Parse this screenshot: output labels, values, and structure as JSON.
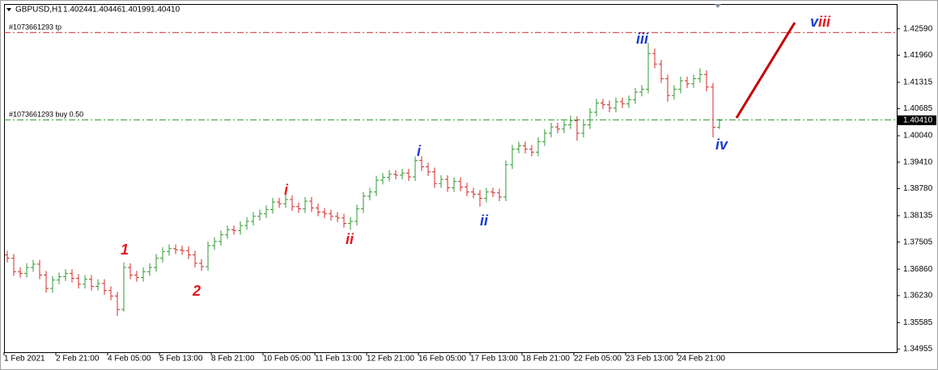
{
  "chart_data": {
    "type": "ohlc",
    "symbol": "GBPUSD,H1",
    "last_labels": {
      "open": "1.40244",
      "high": "1.40446",
      "low": "1.40199",
      "close": "1.40410"
    },
    "up_color": "#2f9a2f",
    "down_color": "#d42a2a",
    "ylim": [
      1.3488,
      1.4318
    ],
    "yticks": [
      {
        "value": 1.4259,
        "label": "1.42590"
      },
      {
        "value": 1.4196,
        "label": "1.41960"
      },
      {
        "value": 1.41315,
        "label": "1.41315"
      },
      {
        "value": 1.40685,
        "label": "1.40685"
      },
      {
        "value": 1.4004,
        "label": "1.40040"
      },
      {
        "value": 1.3941,
        "label": "1.39410"
      },
      {
        "value": 1.3878,
        "label": "1.38780"
      },
      {
        "value": 1.38135,
        "label": "1.38135"
      },
      {
        "value": 1.37505,
        "label": "1.37505"
      },
      {
        "value": 1.3686,
        "label": "1.36860"
      },
      {
        "value": 1.3623,
        "label": "1.36230"
      },
      {
        "value": 1.35585,
        "label": "1.35585"
      },
      {
        "value": 1.34955,
        "label": "1.34955"
      }
    ],
    "categories": [
      "1 Feb 2021",
      null,
      null,
      null,
      null,
      null,
      null,
      null,
      "2 Feb 21:00",
      null,
      null,
      null,
      null,
      null,
      null,
      null,
      "4 Feb 05:00",
      null,
      null,
      null,
      null,
      null,
      null,
      null,
      "5 Feb 13:00",
      null,
      null,
      null,
      null,
      null,
      null,
      null,
      "8 Feb 21:00",
      null,
      null,
      null,
      null,
      null,
      null,
      null,
      "10 Feb 05:00",
      null,
      null,
      null,
      null,
      null,
      null,
      null,
      "11 Feb 13:00",
      null,
      null,
      null,
      null,
      null,
      null,
      null,
      "12 Feb 21:00",
      null,
      null,
      null,
      null,
      null,
      null,
      null,
      "16 Feb 05:00",
      null,
      null,
      null,
      null,
      null,
      null,
      null,
      "17 Feb 13:00",
      null,
      null,
      null,
      null,
      null,
      null,
      null,
      "18 Feb 21:00",
      null,
      null,
      null,
      null,
      null,
      null,
      null,
      "22 Feb 05:00",
      null,
      null,
      null,
      null,
      null,
      null,
      null,
      "23 Feb 13:00",
      null,
      null,
      null,
      null,
      null,
      null,
      null,
      "24 Feb 21:00",
      null,
      null,
      null,
      null,
      null,
      null
    ],
    "open": [
      1.372,
      1.3712,
      1.368,
      1.3676,
      1.369,
      1.3698,
      1.3672,
      1.364,
      1.366,
      1.3668,
      1.3676,
      1.3664,
      1.365,
      1.3662,
      1.3645,
      1.3652,
      1.3635,
      1.3622,
      1.359,
      1.369,
      1.3672,
      1.3666,
      1.368,
      1.369,
      1.3712,
      1.3728,
      1.3735,
      1.3732,
      1.373,
      1.372,
      1.37,
      1.3692,
      1.3742,
      1.3752,
      1.3768,
      1.378,
      1.3778,
      1.379,
      1.38,
      1.3812,
      1.3818,
      1.3828,
      1.3846,
      1.3842,
      1.3852,
      1.3835,
      1.383,
      1.3848,
      1.3832,
      1.3822,
      1.3818,
      1.3812,
      1.3808,
      1.3795,
      1.38,
      1.383,
      1.386,
      1.387,
      1.3898,
      1.3905,
      1.3912,
      1.391,
      1.3915,
      1.3906,
      1.3945,
      1.393,
      1.3918,
      1.389,
      1.39,
      1.388,
      1.3895,
      1.3882,
      1.387,
      1.3865,
      1.3855,
      1.387,
      1.3868,
      1.3858,
      1.3935,
      1.3972,
      1.398,
      1.3972,
      1.3965,
      1.399,
      1.401,
      1.4025,
      1.402,
      1.403,
      1.404,
      1.401,
      1.403,
      1.406,
      1.4082,
      1.4078,
      1.407,
      1.4085,
      1.408,
      1.409,
      1.4108,
      1.4115,
      1.42,
      1.4175,
      1.414,
      1.41,
      1.4115,
      1.4135,
      1.4128,
      1.414,
      1.415,
      1.412,
      1.40244
    ],
    "high": [
      1.373,
      1.3722,
      1.369,
      1.37,
      1.3708,
      1.3708,
      1.3682,
      1.367,
      1.3678,
      1.3686,
      1.3686,
      1.3674,
      1.3672,
      1.3672,
      1.3662,
      1.3662,
      1.3645,
      1.3632,
      1.3702,
      1.37,
      1.3682,
      1.369,
      1.37,
      1.3722,
      1.3738,
      1.3745,
      1.3745,
      1.3742,
      1.374,
      1.373,
      1.371,
      1.3752,
      1.3762,
      1.3778,
      1.379,
      1.379,
      1.38,
      1.381,
      1.3822,
      1.3828,
      1.3838,
      1.3856,
      1.3856,
      1.3866,
      1.3862,
      1.3845,
      1.3858,
      1.3858,
      1.3842,
      1.3832,
      1.3828,
      1.3822,
      1.3818,
      1.381,
      1.384,
      1.387,
      1.388,
      1.3908,
      1.3915,
      1.3922,
      1.3922,
      1.3925,
      1.3925,
      1.3955,
      1.3955,
      1.394,
      1.3928,
      1.391,
      1.391,
      1.3905,
      1.3905,
      1.3892,
      1.388,
      1.3875,
      1.388,
      1.388,
      1.3878,
      1.3945,
      1.3982,
      1.399,
      1.399,
      1.3982,
      1.4,
      1.402,
      1.4035,
      1.4035,
      1.404,
      1.4052,
      1.405,
      1.404,
      1.407,
      1.4092,
      1.4092,
      1.4088,
      1.4095,
      1.4095,
      1.41,
      1.4118,
      1.4125,
      1.4225,
      1.4212,
      1.4185,
      1.415,
      1.4125,
      1.4145,
      1.4145,
      1.415,
      1.4165,
      1.416,
      1.413,
      1.40446
    ],
    "low": [
      1.3702,
      1.367,
      1.3666,
      1.3666,
      1.368,
      1.3662,
      1.363,
      1.363,
      1.365,
      1.3658,
      1.3654,
      1.364,
      1.364,
      1.3635,
      1.3635,
      1.3625,
      1.3612,
      1.3575,
      1.3585,
      1.3662,
      1.3656,
      1.3656,
      1.367,
      1.368,
      1.3702,
      1.3718,
      1.3722,
      1.372,
      1.371,
      1.369,
      1.3682,
      1.3682,
      1.3732,
      1.3742,
      1.3758,
      1.3768,
      1.3768,
      1.378,
      1.379,
      1.3802,
      1.3808,
      1.3818,
      1.3832,
      1.3832,
      1.3825,
      1.382,
      1.382,
      1.3822,
      1.3812,
      1.3808,
      1.3802,
      1.3798,
      1.3785,
      1.378,
      1.379,
      1.382,
      1.385,
      1.386,
      1.3888,
      1.3895,
      1.39,
      1.39,
      1.3896,
      1.3896,
      1.392,
      1.3908,
      1.388,
      1.388,
      1.387,
      1.387,
      1.3872,
      1.386,
      1.3855,
      1.3835,
      1.3845,
      1.3858,
      1.3848,
      1.3848,
      1.3925,
      1.3962,
      1.3962,
      1.3955,
      1.3955,
      1.398,
      1.4,
      1.401,
      1.401,
      1.402,
      1.3992,
      1.4,
      1.402,
      1.405,
      1.4068,
      1.406,
      1.406,
      1.407,
      1.407,
      1.408,
      1.4098,
      1.4105,
      1.4165,
      1.413,
      1.4085,
      1.409,
      1.4105,
      1.4118,
      1.4118,
      1.413,
      1.411,
      1.4,
      1.40199
    ],
    "close": [
      1.3712,
      1.368,
      1.3676,
      1.369,
      1.3698,
      1.3672,
      1.364,
      1.366,
      1.3668,
      1.3676,
      1.3664,
      1.365,
      1.3662,
      1.3645,
      1.3652,
      1.3635,
      1.3622,
      1.359,
      1.369,
      1.3672,
      1.3666,
      1.368,
      1.369,
      1.3712,
      1.3728,
      1.3735,
      1.3732,
      1.373,
      1.372,
      1.37,
      1.3692,
      1.3742,
      1.3752,
      1.3768,
      1.378,
      1.3778,
      1.379,
      1.38,
      1.3812,
      1.3818,
      1.3828,
      1.3846,
      1.3842,
      1.3852,
      1.3835,
      1.383,
      1.3848,
      1.3832,
      1.3822,
      1.3818,
      1.3812,
      1.3808,
      1.3795,
      1.38,
      1.383,
      1.386,
      1.387,
      1.3898,
      1.3905,
      1.3912,
      1.391,
      1.3915,
      1.3906,
      1.3945,
      1.393,
      1.3918,
      1.389,
      1.39,
      1.388,
      1.3895,
      1.3882,
      1.387,
      1.3865,
      1.3855,
      1.387,
      1.3868,
      1.3858,
      1.3935,
      1.3972,
      1.398,
      1.3972,
      1.3965,
      1.399,
      1.401,
      1.4025,
      1.402,
      1.403,
      1.404,
      1.401,
      1.403,
      1.406,
      1.4082,
      1.4078,
      1.407,
      1.4085,
      1.408,
      1.409,
      1.4108,
      1.4115,
      1.42,
      1.4175,
      1.414,
      1.41,
      1.4115,
      1.4135,
      1.4128,
      1.414,
      1.415,
      1.412,
      1.40244,
      1.4041
    ],
    "order_lines": [
      {
        "label": "#1073661293 tp",
        "price": 1.425,
        "color": "#cc2a2a"
      },
      {
        "label": "#1073661293 buy 0.50",
        "price": 1.4042,
        "color": "#2f9a2f"
      }
    ],
    "annotations": [
      {
        "text": "1",
        "color": "#e8141c"
      },
      {
        "text": "2",
        "color": "#e8141c"
      },
      {
        "text": "i",
        "color": "#e8141c"
      },
      {
        "text": "ii",
        "color": "#e8141c"
      },
      {
        "text": "i",
        "color": "#1a3ad0"
      },
      {
        "text": "ii",
        "color": "#1a3ad0"
      },
      {
        "text": "iii",
        "color": "#1a3ad0"
      },
      {
        "text": "iv",
        "color": "#1a3ad0"
      },
      {
        "text": "v",
        "color": "#1a3ad0"
      },
      {
        "text": "iii",
        "color": "#e8141c"
      }
    ]
  }
}
